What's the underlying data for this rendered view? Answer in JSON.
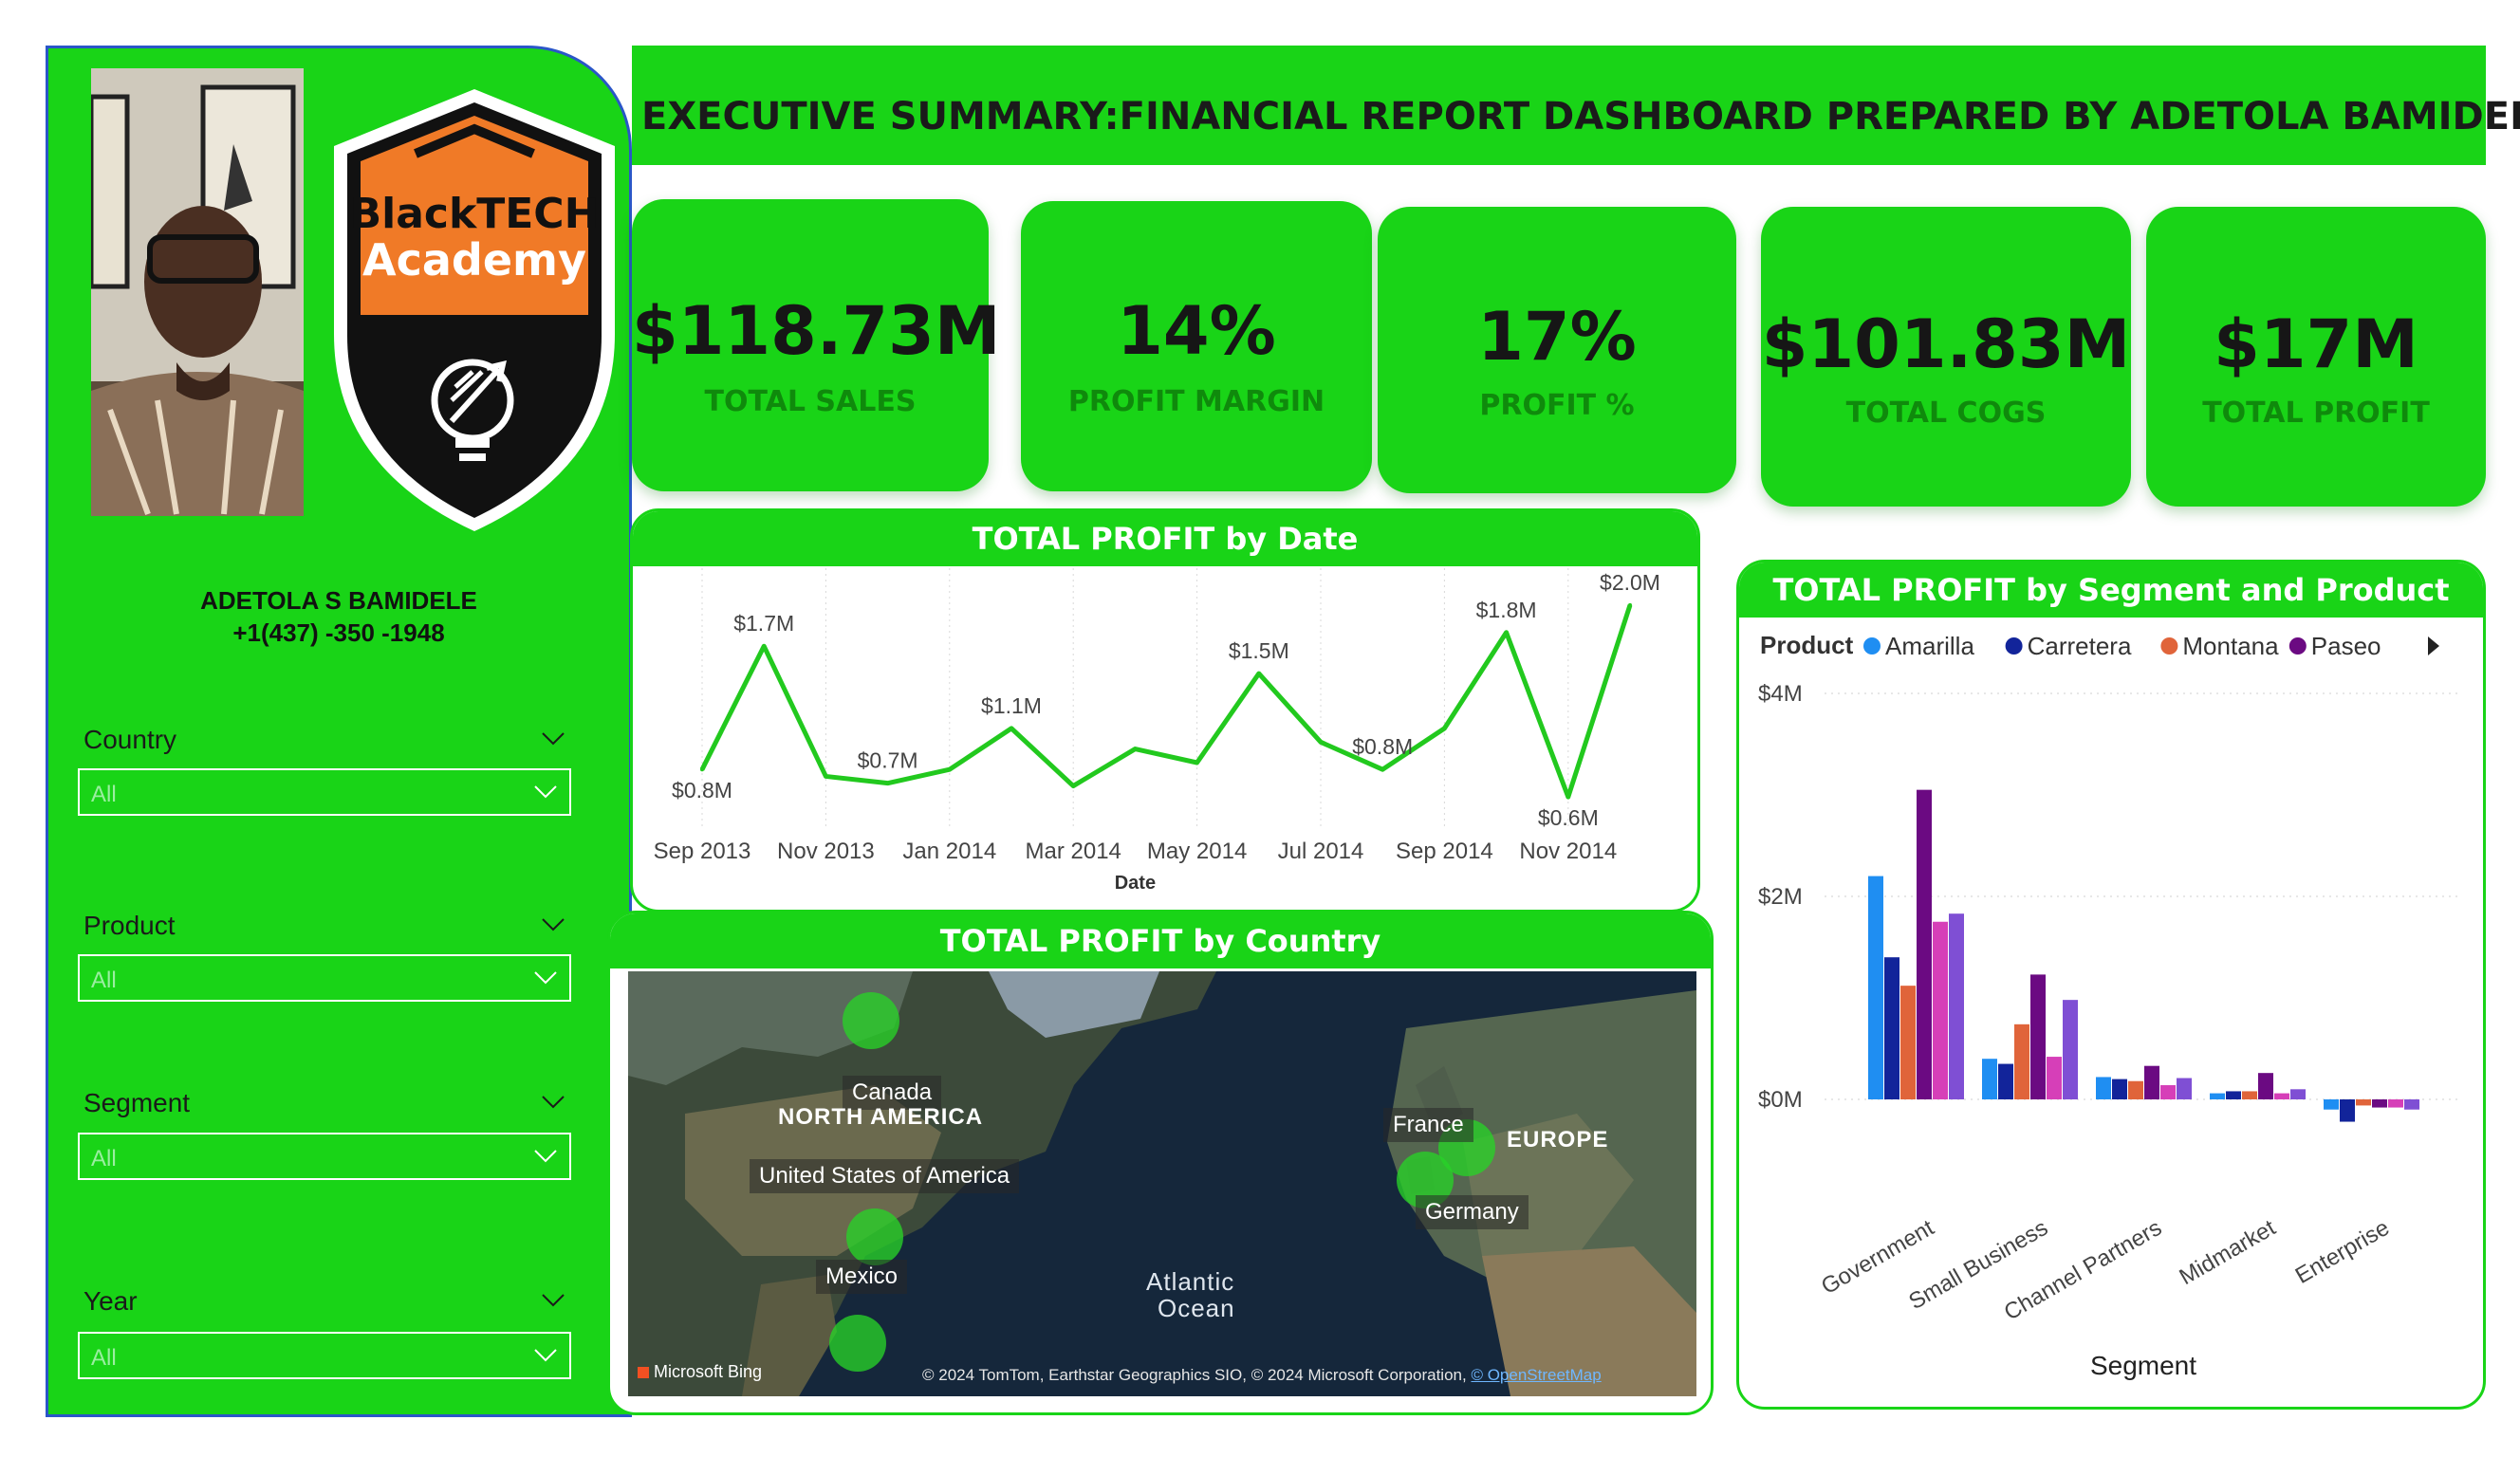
{
  "title": "EXECUTIVE SUMMARY:FINANCIAL REPORT DASHBOARD PREPARED BY ADETOLA BAMIDELE",
  "sidebar": {
    "logo_line1": "BlackTECH",
    "logo_line2": "Academy",
    "name": "ADETOLA  S BAMIDELE",
    "phone": "+1(437) -350 -1948",
    "slicers": [
      {
        "label": "Country",
        "value": "All"
      },
      {
        "label": "Product",
        "value": "All"
      },
      {
        "label": "Segment",
        "value": "All"
      },
      {
        "label": "Year",
        "value": "All"
      }
    ]
  },
  "kpis": [
    {
      "value": "$118.73M",
      "label": "TOTAL SALES"
    },
    {
      "value": "14%",
      "label": "PROFIT MARGIN"
    },
    {
      "value": "17%",
      "label": "PROFIT %"
    },
    {
      "value": "$101.83M",
      "label": "TOTAL COGS"
    },
    {
      "value": "$17M",
      "label": "TOTAL PROFIT"
    }
  ],
  "line_chart": {
    "title": "TOTAL PROFIT by Date",
    "xlabel": "Date",
    "x_ticks": [
      "Sep 2013",
      "Nov 2013",
      "Jan 2014",
      "Mar 2014",
      "May 2014",
      "Jul 2014",
      "Sep 2014",
      "Nov 2014"
    ]
  },
  "map": {
    "title": "TOTAL PROFIT by Country",
    "labels": {
      "canada": "Canada",
      "usa": "United States of America",
      "mexico": "Mexico",
      "france": "France",
      "germany": "Germany",
      "north_america": "NORTH AMERICA",
      "europe": "EUROPE",
      "atlantic1": "Atlantic",
      "atlantic2": "Ocean"
    },
    "provider": "Microsoft Bing",
    "attribution": "© 2024 TomTom, Earthstar Geographics SIO, © 2024 Microsoft Corporation,",
    "attribution_link": "© OpenStreetMap"
  },
  "bar_chart": {
    "title": "TOTAL PROFIT by Segment and Product",
    "legend_title": "Product",
    "xlabel": "Segment"
  },
  "colors": {
    "accent_green": "#19d417",
    "line_green": "#22c91e",
    "amarilla": "#1f8ef2",
    "carretera": "#12249a",
    "montana": "#e0643a",
    "paseo": "#6b0a82",
    "series5": "#d63fb8",
    "series6": "#7f4fd4"
  },
  "chart_data": [
    {
      "type": "line",
      "title": "TOTAL PROFIT by Date",
      "xlabel": "Date",
      "ylabel": "",
      "x": [
        "Sep 2013",
        "Oct 2013",
        "Nov 2013",
        "Dec 2013",
        "Jan 2014",
        "Feb 2014",
        "Mar 2014",
        "Apr 2014",
        "May 2014",
        "Jun 2014",
        "Jul 2014",
        "Aug 2014",
        "Sep 2014",
        "Oct 2014",
        "Nov 2014",
        "Dec 2014"
      ],
      "values": [
        0.8,
        1.7,
        0.75,
        0.7,
        0.8,
        1.1,
        0.68,
        0.95,
        0.85,
        1.5,
        1.0,
        0.8,
        1.1,
        1.8,
        0.6,
        2.0
      ],
      "data_labels": [
        {
          "x": "Sep 2013",
          "text": "$0.8M"
        },
        {
          "x": "Oct 2013",
          "text": "$1.7M"
        },
        {
          "x": "Dec 2013",
          "text": "$0.7M"
        },
        {
          "x": "Feb 2014",
          "text": "$1.1M"
        },
        {
          "x": "Jun 2014",
          "text": "$1.5M"
        },
        {
          "x": "Aug 2014",
          "text": "$0.8M"
        },
        {
          "x": "Oct 2014",
          "text": "$1.8M"
        },
        {
          "x": "Nov 2014",
          "text": "$0.6M"
        },
        {
          "x": "Dec 2014",
          "text": "$2.0M"
        }
      ],
      "ylim": [
        0.4,
        2.2
      ]
    },
    {
      "type": "bar",
      "title": "TOTAL PROFIT by Segment and Product",
      "xlabel": "Segment",
      "ylabel": "",
      "legend_title": "Product",
      "legend_placement": "top",
      "categories": [
        "Government",
        "Small Business",
        "Channel Partners",
        "Midmarket",
        "Enterprise"
      ],
      "y_ticks": [
        "$0M",
        "$2M",
        "$4M"
      ],
      "ylim": [
        -0.4,
        4
      ],
      "series": [
        {
          "name": "Amarilla",
          "color": "#1f8ef2",
          "values": [
            2.2,
            0.4,
            0.22,
            0.06,
            -0.1
          ]
        },
        {
          "name": "Carretera",
          "color": "#12249a",
          "values": [
            1.4,
            0.35,
            0.2,
            0.08,
            -0.22
          ]
        },
        {
          "name": "Montana",
          "color": "#e0643a",
          "values": [
            1.12,
            0.74,
            0.18,
            0.08,
            -0.06
          ]
        },
        {
          "name": "Paseo",
          "color": "#6b0a82",
          "values": [
            3.05,
            1.23,
            0.33,
            0.26,
            -0.08
          ]
        },
        {
          "name": "",
          "color": "#d63fb8",
          "values": [
            1.75,
            0.42,
            0.14,
            0.06,
            -0.08
          ]
        },
        {
          "name": "",
          "color": "#7f4fd4",
          "values": [
            1.83,
            0.98,
            0.21,
            0.1,
            -0.1
          ]
        }
      ]
    }
  ]
}
